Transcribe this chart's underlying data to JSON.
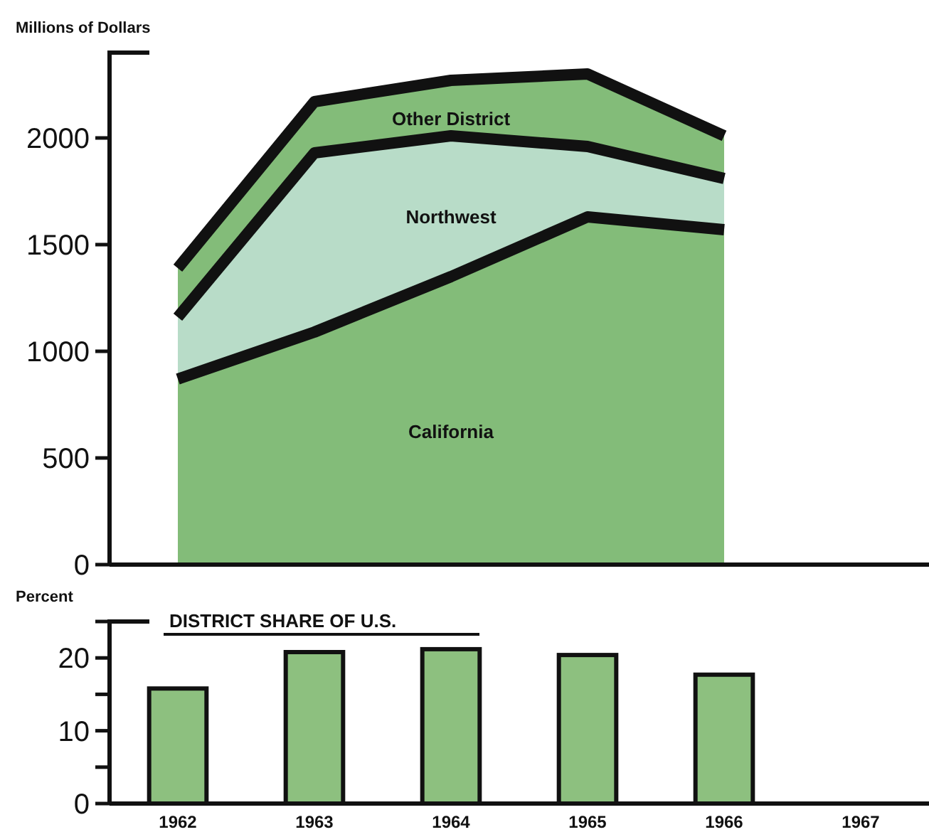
{
  "chart_data": [
    {
      "type": "area",
      "ylabel": "Millions of Dollars",
      "categories": [
        "1962",
        "1963",
        "1964",
        "1965",
        "1966",
        "1967"
      ],
      "stacked": true,
      "ylim": [
        0,
        2400
      ],
      "yticks": [
        0,
        500,
        1000,
        1500,
        2000
      ],
      "tick_labels": "y",
      "grid": false,
      "series": [
        {
          "name": "California",
          "color": "#83bc79",
          "values": [
            870,
            1090,
            1350,
            1630,
            1570,
            null
          ]
        },
        {
          "name": "Northwest",
          "color": "#b8dcc8",
          "values": [
            290,
            840,
            660,
            330,
            240,
            null
          ]
        },
        {
          "name": "Other District",
          "color": "#83bc79",
          "values": [
            230,
            240,
            260,
            340,
            200,
            null
          ]
        }
      ]
    },
    {
      "type": "bar",
      "title": "DISTRICT SHARE OF U.S.",
      "ylabel": "Percent",
      "categories": [
        "1962",
        "1963",
        "1964",
        "1965",
        "1966",
        "1967"
      ],
      "values": [
        15.8,
        20.8,
        21.2,
        20.4,
        17.7,
        null
      ],
      "color": "#8dc07f",
      "ylim": [
        0,
        25
      ],
      "yticks": [
        0,
        {
          "value": 5,
          "label": null
        },
        10,
        {
          "value": 15,
          "label": null
        },
        20,
        {
          "value": 25,
          "label": null
        }
      ],
      "grid": false
    }
  ]
}
